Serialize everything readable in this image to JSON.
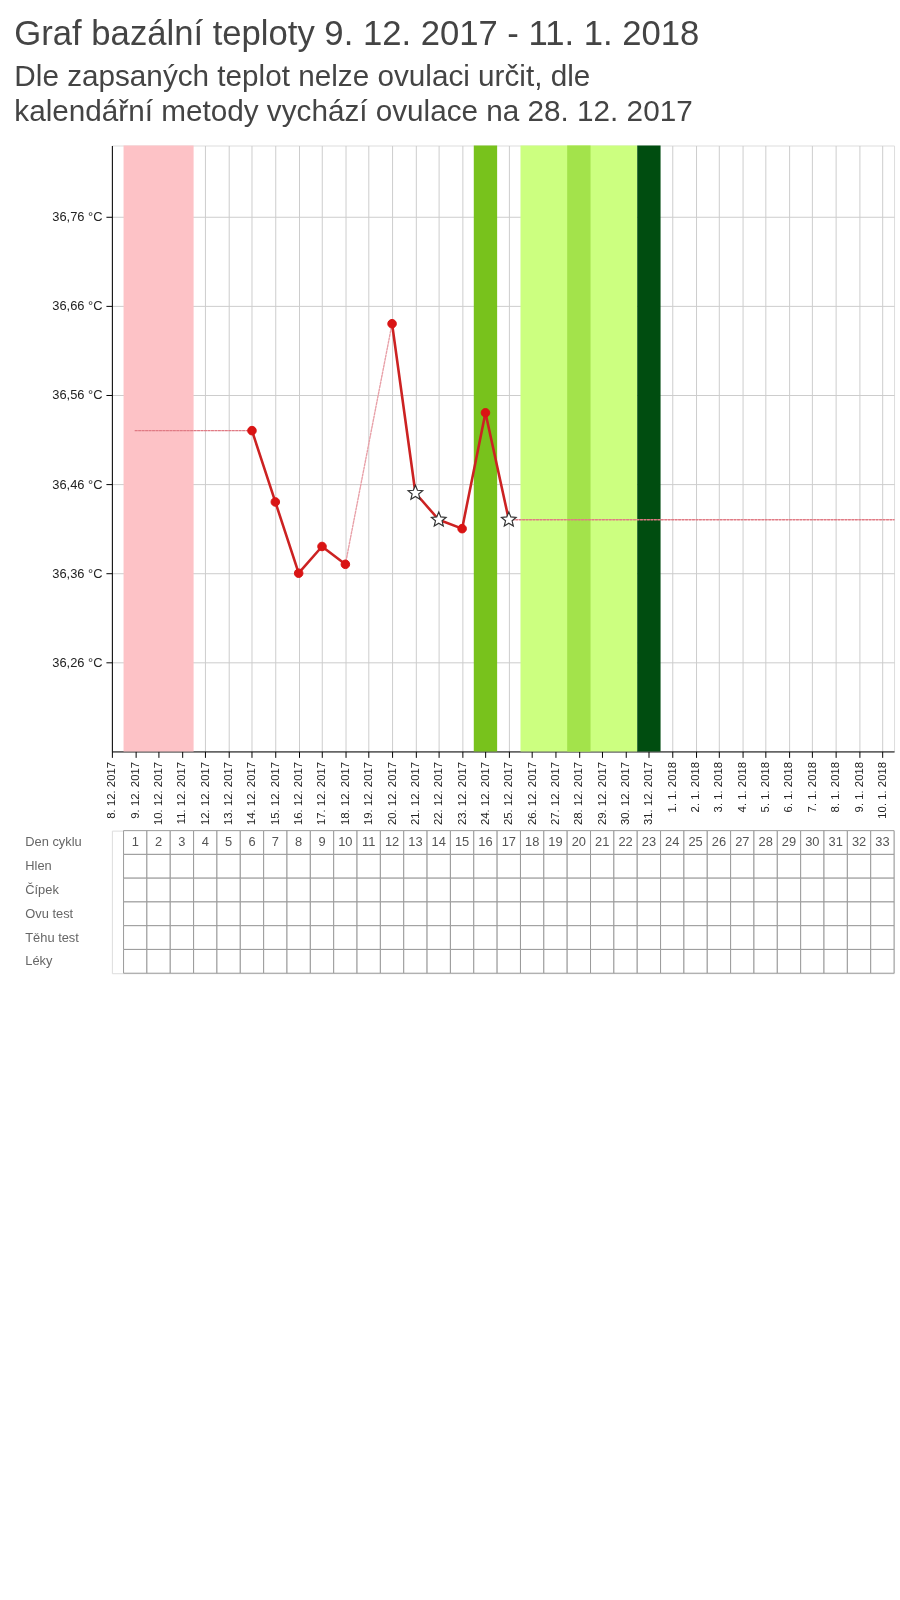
{
  "chart_data": [
    {
      "type": "line",
      "title": "Graf bazální teploty 9. 12. 2017 - 11. 1. 2018",
      "subtitle": "Dle zapsaných teplot nelze ovulaci určit, dle kalendářní metody vychází ovulace na 28. 12. 2017",
      "xlim": [
        "2017-12-08",
        "2018-01-10T12:00"
      ],
      "ylim": [
        36.16,
        36.84
      ],
      "xticks": [
        {
          "value": "2017-12-08",
          "label": "8. 12. 2017"
        },
        {
          "value": "2017-12-09",
          "label": "9. 12. 2017"
        },
        {
          "value": "2017-12-10",
          "label": "10. 12. 2017"
        },
        {
          "value": "2017-12-11",
          "label": "11. 12. 2017"
        },
        {
          "value": "2017-12-12",
          "label": "12. 12. 2017"
        },
        {
          "value": "2017-12-13",
          "label": "13. 12. 2017"
        },
        {
          "value": "2017-12-14",
          "label": "14. 12. 2017"
        },
        {
          "value": "2017-12-15",
          "label": "15. 12. 2017"
        },
        {
          "value": "2017-12-16",
          "label": "16. 12. 2017"
        },
        {
          "value": "2017-12-17",
          "label": "17. 12. 2017"
        },
        {
          "value": "2017-12-18",
          "label": "18. 12. 2017"
        },
        {
          "value": "2017-12-19",
          "label": "19. 12. 2017"
        },
        {
          "value": "2017-12-20",
          "label": "20. 12. 2017"
        },
        {
          "value": "2017-12-21",
          "label": "21. 12. 2017"
        },
        {
          "value": "2017-12-22",
          "label": "22. 12. 2017"
        },
        {
          "value": "2017-12-23",
          "label": "23. 12. 2017"
        },
        {
          "value": "2017-12-24",
          "label": "24. 12. 2017"
        },
        {
          "value": "2017-12-25",
          "label": "25. 12. 2017"
        },
        {
          "value": "2017-12-26",
          "label": "26. 12. 2017"
        },
        {
          "value": "2017-12-27",
          "label": "27. 12. 2017"
        },
        {
          "value": "2017-12-28",
          "label": "28. 12. 2017"
        },
        {
          "value": "2017-12-29",
          "label": "29. 12. 2017"
        },
        {
          "value": "2017-12-30",
          "label": "30. 12. 2017"
        },
        {
          "value": "2017-12-31",
          "label": "31. 12. 2017"
        },
        {
          "value": "2018-01-01",
          "label": "1. 1. 2018"
        },
        {
          "value": "2018-01-02",
          "label": "2. 1. 2018"
        },
        {
          "value": "2018-01-03",
          "label": "3. 1. 2018"
        },
        {
          "value": "2018-01-04",
          "label": "4. 1. 2018"
        },
        {
          "value": "2018-01-05",
          "label": "5. 1. 2018"
        },
        {
          "value": "2018-01-06",
          "label": "6. 1. 2018"
        },
        {
          "value": "2018-01-07",
          "label": "7. 1. 2018"
        },
        {
          "value": "2018-01-08",
          "label": "8. 1. 2018"
        },
        {
          "value": "2018-01-09",
          "label": "9. 1. 2018"
        },
        {
          "value": "2018-01-10",
          "label": "10. 1. 2018"
        }
      ],
      "yticks": [
        {
          "value": 36.26,
          "label": "36,26 °C"
        },
        {
          "value": 36.36,
          "label": "36,36 °C"
        },
        {
          "value": 36.46,
          "label": "36,46 °C"
        },
        {
          "value": 36.56,
          "label": "36,56 °C"
        },
        {
          "value": 36.66,
          "label": "36,66 °C"
        },
        {
          "value": 36.76,
          "label": "36,76 °C"
        }
      ],
      "grid": true,
      "bands": [
        {
          "axis": "x",
          "from": "2017-12-08T12:00",
          "to": "2017-12-11T12:00",
          "color": "#fdc2c6"
        },
        {
          "axis": "x",
          "from": "2017-12-23T12:00",
          "to": "2017-12-24T12:00",
          "color": "#78c21c"
        },
        {
          "axis": "x",
          "from": "2017-12-25T12:00",
          "to": "2017-12-30T12:00",
          "color": "#ccff80"
        },
        {
          "axis": "x",
          "from": "2017-12-27T12:00",
          "to": "2017-12-28T12:00",
          "color": "#a3e34b"
        },
        {
          "axis": "x",
          "from": "2017-12-30T12:00",
          "to": "2017-12-31T12:00",
          "color": "#004d10"
        }
      ],
      "series": [
        {
          "type": "line",
          "line_style": "dotted",
          "color": "#e07a84",
          "x": [
            "2017-12-09",
            "2017-12-14"
          ],
          "values": [
            36.52,
            36.52
          ]
        },
        {
          "type": "line",
          "line_style": "dotted",
          "color": "#e07a84",
          "x": [
            "2017-12-25",
            "2018-01-10T12:00"
          ],
          "values": [
            36.42,
            36.42
          ]
        },
        {
          "type": "line",
          "line_style": "dotted",
          "color": "#e8a0a8",
          "x": [
            "2017-12-18",
            "2017-12-20"
          ],
          "values": [
            36.37,
            36.64
          ]
        },
        {
          "type": "line",
          "line_style": "solid",
          "color": "#cc2222",
          "x": [
            "2017-12-14",
            "2017-12-15",
            "2017-12-16",
            "2017-12-17",
            "2017-12-18",
            "2017-12-19",
            "2017-12-20",
            "2017-12-21",
            "2017-12-22",
            "2017-12-23",
            "2017-12-24",
            "2017-12-25"
          ],
          "values": [
            36.52,
            36.44,
            36.36,
            36.39,
            36.37,
            null,
            36.64,
            36.45,
            36.42,
            36.41,
            36.54,
            36.42
          ]
        },
        {
          "type": "scatter",
          "marker": "circle",
          "color": "#d91414",
          "x": [
            "2017-12-14",
            "2017-12-15",
            "2017-12-16",
            "2017-12-17",
            "2017-12-18",
            "2017-12-20",
            "2017-12-23",
            "2017-12-24"
          ],
          "values": [
            36.52,
            36.44,
            36.36,
            36.39,
            36.37,
            36.64,
            36.41,
            36.54
          ]
        },
        {
          "type": "scatter",
          "marker": "star",
          "color": "#ffffff",
          "x": [
            "2017-12-21",
            "2017-12-22",
            "2017-12-25"
          ],
          "values": [
            36.45,
            36.42,
            36.42
          ]
        }
      ]
    },
    {
      "type": "heatmap",
      "data_labels": true,
      "categories": [
        null,
        null,
        null,
        null,
        null,
        null,
        null,
        null,
        null,
        null,
        null,
        null,
        null,
        null,
        null,
        null,
        null,
        null,
        null,
        null,
        null,
        null,
        null,
        null,
        null,
        null,
        null,
        null,
        null,
        null,
        null,
        null,
        null
      ],
      "y_categories": [
        "Den cyklu",
        "Hlen",
        "Čípek",
        "Ovu test",
        "Těhu test",
        "Léky"
      ],
      "cells": [
        [
          1,
          2,
          3,
          4,
          5,
          6,
          7,
          8,
          9,
          10,
          11,
          12,
          13,
          14,
          15,
          16,
          17,
          18,
          19,
          20,
          21,
          22,
          23,
          24,
          25,
          26,
          27,
          28,
          29,
          30,
          31,
          32,
          33
        ],
        [
          null,
          null,
          null,
          null,
          null,
          null,
          null,
          null,
          null,
          null,
          null,
          null,
          null,
          null,
          null,
          null,
          null,
          null,
          null,
          null,
          null,
          null,
          null,
          null,
          null,
          null,
          null,
          null,
          null,
          null,
          null,
          null,
          null
        ],
        [
          null,
          null,
          null,
          null,
          null,
          null,
          null,
          null,
          null,
          null,
          null,
          null,
          null,
          null,
          null,
          null,
          null,
          null,
          null,
          null,
          null,
          null,
          null,
          null,
          null,
          null,
          null,
          null,
          null,
          null,
          null,
          null,
          null
        ],
        [
          null,
          null,
          null,
          null,
          null,
          null,
          null,
          null,
          null,
          null,
          null,
          null,
          null,
          null,
          null,
          null,
          null,
          null,
          null,
          null,
          null,
          null,
          null,
          null,
          null,
          null,
          null,
          null,
          null,
          null,
          null,
          null,
          null
        ],
        [
          null,
          null,
          null,
          null,
          null,
          null,
          null,
          null,
          null,
          null,
          null,
          null,
          null,
          null,
          null,
          null,
          null,
          null,
          null,
          null,
          null,
          null,
          null,
          null,
          null,
          null,
          null,
          null,
          null,
          null,
          null,
          null,
          null
        ],
        [
          null,
          null,
          null,
          null,
          null,
          null,
          null,
          null,
          null,
          null,
          null,
          null,
          null,
          null,
          null,
          null,
          null,
          null,
          null,
          null,
          null,
          null,
          null,
          null,
          null,
          null,
          null,
          null,
          null,
          null,
          null,
          null,
          null
        ]
      ]
    }
  ]
}
